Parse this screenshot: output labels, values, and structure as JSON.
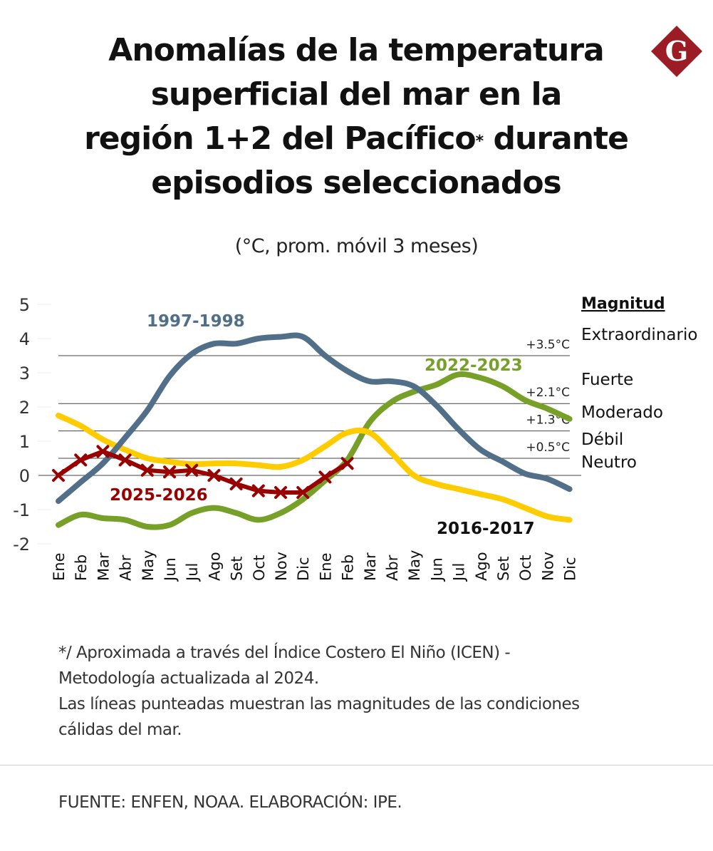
{
  "header": {
    "title_line1": "Anomalías de la temperatura",
    "title_line2": "superficial del mar en la",
    "title_line3a": "región 1+2 del Pacífico",
    "title_line3_mark": "*",
    "title_line3b": " durante",
    "title_line4": "episodios seleccionados",
    "subtitle": "(°C, prom. móvil 3 meses)",
    "logo_letter": "G",
    "logo_color": "#9b1c24"
  },
  "chart_data": {
    "type": "line",
    "title": "Anomalías de la temperatura superficial del mar en la región 1+2 del Pacífico* durante episodios seleccionados",
    "subtitle": "(°C, prom. móvil 3 meses)",
    "xlabel": "",
    "ylabel": "",
    "ylim": [
      -2,
      5
    ],
    "yticks": [
      "5",
      "4",
      "3",
      "2",
      "1",
      "0",
      "-1",
      "-2"
    ],
    "ytick_values": [
      5,
      4,
      3,
      2,
      1,
      0,
      -1,
      -2
    ],
    "x": [
      "Ene",
      "Feb",
      "Mar",
      "Abr",
      "May",
      "Jun",
      "Jul",
      "Ago",
      "Set",
      "Oct",
      "Nov",
      "Dic",
      "Ene",
      "Feb",
      "Mar",
      "Abr",
      "May",
      "Jun",
      "Jul",
      "Ago",
      "Set",
      "Oct",
      "Nov",
      "Dic"
    ],
    "grid": false,
    "series": [
      {
        "name": "1997-1998",
        "color": "#516f88",
        "label_style": "bold",
        "markers": false,
        "values": [
          -0.75,
          -0.2,
          0.35,
          1.1,
          1.9,
          2.9,
          3.55,
          3.85,
          3.85,
          4.0,
          4.05,
          4.05,
          3.5,
          3.05,
          2.75,
          2.75,
          2.6,
          2.05,
          1.35,
          0.75,
          0.4,
          0.05,
          -0.1,
          -0.4
        ]
      },
      {
        "name": "2016-2017",
        "color": "#ffcc00",
        "label_color": "#111111",
        "markers": false,
        "values": [
          1.75,
          1.45,
          1.05,
          0.75,
          0.5,
          0.4,
          0.33,
          0.35,
          0.35,
          0.3,
          0.25,
          0.45,
          0.85,
          1.25,
          1.25,
          0.65,
          0.0,
          -0.25,
          -0.4,
          -0.55,
          -0.7,
          -0.95,
          -1.2,
          -1.3
        ]
      },
      {
        "name": "2022-2023",
        "color": "#77a028",
        "markers": false,
        "values": [
          -1.45,
          -1.15,
          -1.25,
          -1.3,
          -1.5,
          -1.45,
          -1.1,
          -0.95,
          -1.1,
          -1.3,
          -1.1,
          -0.7,
          -0.15,
          0.45,
          1.55,
          2.15,
          2.45,
          2.65,
          2.95,
          2.85,
          2.6,
          2.2,
          1.95,
          1.65
        ]
      },
      {
        "name": "2025-2026",
        "color": "#990000",
        "markers": true,
        "values": [
          0.0,
          0.45,
          0.7,
          0.45,
          0.15,
          0.1,
          0.15,
          0.0,
          -0.25,
          -0.45,
          -0.5,
          -0.5,
          -0.05,
          0.35
        ]
      }
    ],
    "thresholds": [
      {
        "value": 3.5,
        "label": "+3.5°C"
      },
      {
        "value": 2.1,
        "label": "+2.1°C"
      },
      {
        "value": 1.3,
        "label": "+1.3°C"
      },
      {
        "value": 0.5,
        "label": "+0.5°C"
      },
      {
        "value": 0,
        "label": ""
      }
    ],
    "magnitude_legend": {
      "title": "Magnitud",
      "items": [
        "Extraordinario",
        "Fuerte",
        "Moderado",
        "Débil",
        "Neutro"
      ]
    },
    "legend": "inline-labels"
  },
  "footer": {
    "note_line1": "*/ Aproximada a través del Índice Costero El Niño (ICEN) -",
    "note_line2": "Metodología actualizada al 2024.",
    "note_line3": "Las líneas punteadas muestran las magnitudes de las condiciones",
    "note_line4": "cálidas del mar.",
    "source": "FUENTE: ENFEN, NOAA. ELABORACIÓN: IPE."
  }
}
